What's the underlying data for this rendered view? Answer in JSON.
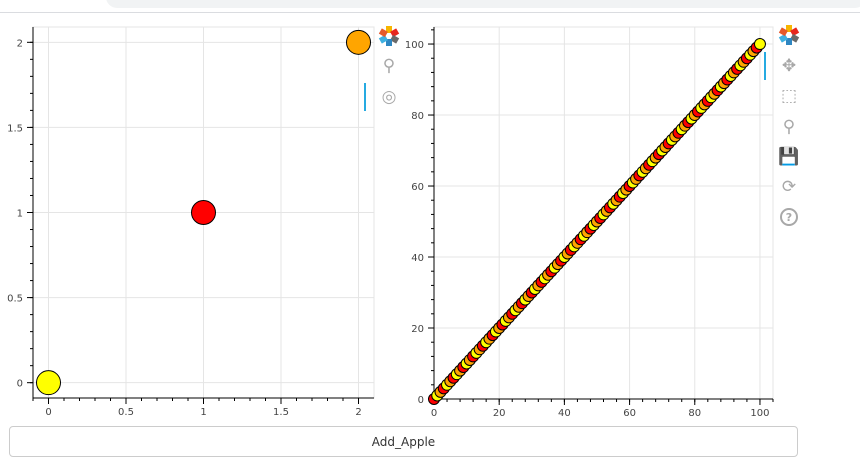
{
  "button": {
    "label": "Add_Apple"
  },
  "colors": {
    "red": "#ff0000",
    "yellow": "#ffff00",
    "orange": "#ffa500",
    "outline": "#000000",
    "active_tool": "#26aae1"
  },
  "toolbars": [
    {
      "tools": [
        "bokeh-logo-icon",
        "wheel-zoom-icon",
        "tap-tool-icon"
      ],
      "active": "tap-tool-icon"
    },
    {
      "tools": [
        "bokeh-logo-icon",
        "pan-icon",
        "box-zoom-icon",
        "wheel-zoom-icon",
        "save-icon",
        "reset-icon",
        "help-icon"
      ],
      "active": "pan-icon"
    }
  ],
  "chart_data": [
    {
      "type": "scatter",
      "x": [
        0,
        1,
        2
      ],
      "y": [
        0,
        1,
        2
      ],
      "colors": [
        "yellow",
        "red",
        "orange"
      ],
      "xlim": [
        -0.1,
        2.1
      ],
      "ylim": [
        -0.09,
        2.09
      ],
      "xticks": [
        0,
        0.5,
        1,
        1.5,
        2
      ],
      "yticks": [
        0,
        0.5,
        1,
        1.5,
        2
      ],
      "xtick_labels": [
        "0",
        "0.5",
        "1",
        "1.5",
        "2"
      ],
      "ytick_labels": [
        "0",
        "0.5",
        "1",
        "1.5",
        "2"
      ],
      "grid": true
    },
    {
      "type": "scatter",
      "x_range": [
        0,
        100
      ],
      "y_equals_x": true,
      "color_cycle": [
        "red",
        "yellow",
        "orange"
      ],
      "xlim": [
        0,
        104
      ],
      "ylim": [
        0,
        104.8
      ],
      "xticks": [
        0,
        20,
        40,
        60,
        80,
        100
      ],
      "yticks": [
        0,
        20,
        40,
        60,
        80,
        100
      ],
      "xtick_labels": [
        "0",
        "20",
        "40",
        "60",
        "80",
        "100"
      ],
      "ytick_labels": [
        "0",
        "20",
        "40",
        "60",
        "80",
        "100"
      ],
      "grid": true
    }
  ]
}
